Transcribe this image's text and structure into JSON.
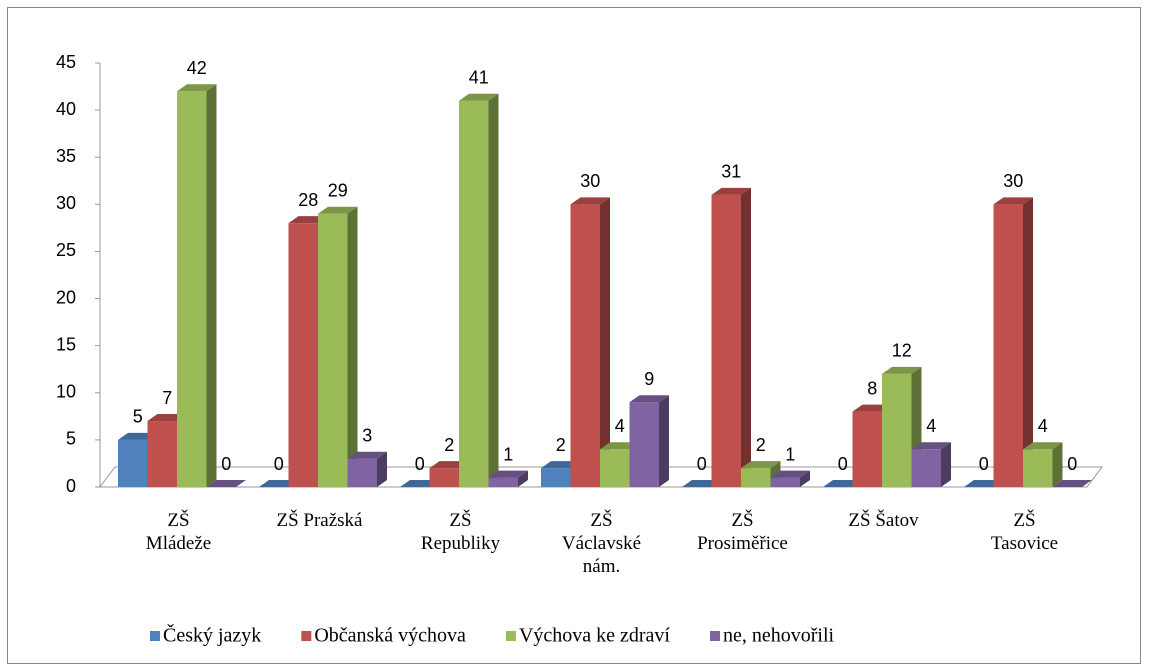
{
  "chart_data": {
    "type": "bar3d",
    "categories": [
      "ZŠ Mládeže",
      "ZŠ Pražská",
      "ZŠ Republiky",
      "ZŠ Václavské nám.",
      "ZŠ Prosiměřice",
      "ZŠ Šatov",
      "ZŠ Tasovice"
    ],
    "series": [
      {
        "name": "Český jazyk",
        "color": "#4f81bd",
        "values": [
          5,
          0,
          0,
          2,
          0,
          0,
          0
        ]
      },
      {
        "name": "Občanská výchova",
        "color": "#c0504d",
        "values": [
          7,
          28,
          2,
          30,
          31,
          8,
          30
        ]
      },
      {
        "name": "Výchova ke zdraví",
        "color": "#9bbb59",
        "values": [
          42,
          29,
          41,
          4,
          2,
          12,
          4
        ]
      },
      {
        "name": "ne, nehovořili",
        "color": "#8064a2",
        "values": [
          0,
          3,
          1,
          9,
          1,
          4,
          0
        ]
      }
    ],
    "ylim": [
      0,
      45
    ],
    "yticks": [
      0,
      5,
      10,
      15,
      20,
      25,
      30,
      35,
      40,
      45
    ],
    "grid": false,
    "legend": "bottom"
  }
}
